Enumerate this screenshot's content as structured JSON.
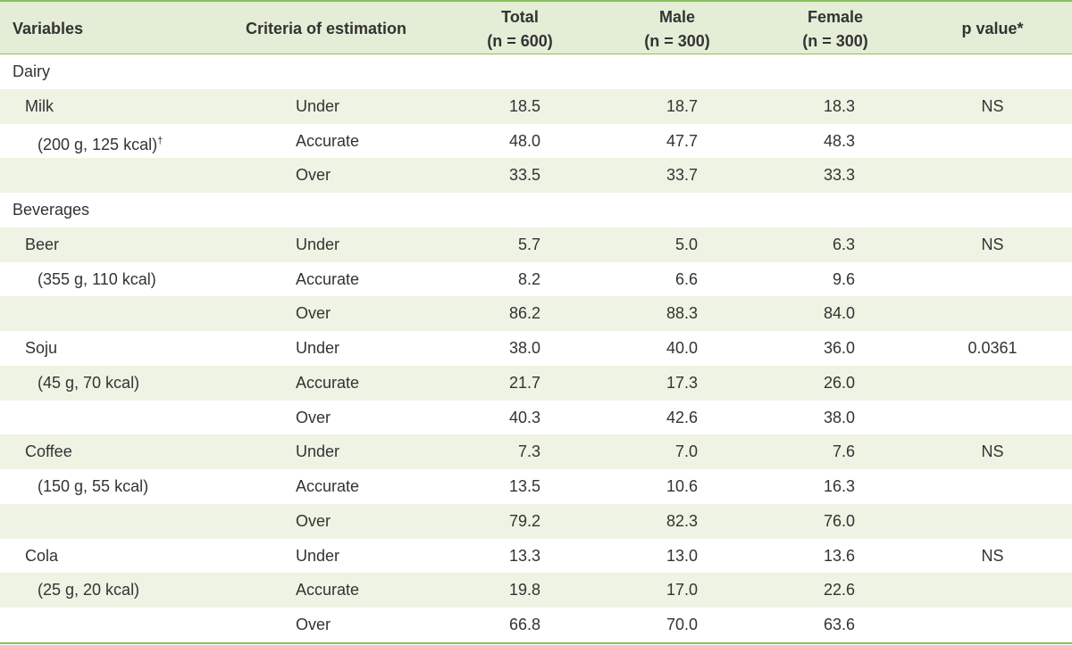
{
  "table": {
    "header": {
      "variables": "Variables",
      "criteria": "Criteria of estimation",
      "total": {
        "label": "Total",
        "n": "(n = 600)"
      },
      "male": {
        "label": "Male",
        "n": "(n = 300)"
      },
      "female": {
        "label": "Female",
        "n": "(n = 300)"
      },
      "p_value": "p value*"
    },
    "rows": [
      {
        "group": "Dairy"
      },
      {
        "item": "Milk",
        "criteria": "Under",
        "values": [
          "18.5",
          "18.7",
          "18.3"
        ],
        "p": "NS"
      },
      {
        "note": "(200 g, 125 kcal)",
        "mark": "†",
        "criteria": "Accurate",
        "values": [
          "48.0",
          "47.7",
          "48.3"
        ]
      },
      {
        "criteria": "Over",
        "values": [
          "33.5",
          "33.7",
          "33.3"
        ]
      },
      {
        "group": "Beverages"
      },
      {
        "item": "Beer",
        "criteria": "Under",
        "values": [
          "5.7",
          "5.0",
          "6.3"
        ],
        "p": "NS"
      },
      {
        "note": "(355 g, 110 kcal)",
        "criteria": "Accurate",
        "values": [
          "8.2",
          "6.6",
          "9.6"
        ]
      },
      {
        "criteria": "Over",
        "values": [
          "86.2",
          "88.3",
          "84.0"
        ]
      },
      {
        "item": "Soju",
        "criteria": "Under",
        "values": [
          "38.0",
          "40.0",
          "36.0"
        ],
        "p": "0.0361"
      },
      {
        "note": "(45 g, 70 kcal)",
        "criteria": "Accurate",
        "values": [
          "21.7",
          "17.3",
          "26.0"
        ]
      },
      {
        "criteria": "Over",
        "values": [
          "40.3",
          "42.6",
          "38.0"
        ]
      },
      {
        "item": "Coffee",
        "criteria": "Under",
        "values": [
          "7.3",
          "7.0",
          "7.6"
        ],
        "p": "NS"
      },
      {
        "note": "(150 g, 55 kcal)",
        "criteria": "Accurate",
        "values": [
          "13.5",
          "10.6",
          "16.3"
        ]
      },
      {
        "criteria": "Over",
        "values": [
          "79.2",
          "82.3",
          "76.0"
        ]
      },
      {
        "item": "Cola",
        "criteria": "Under",
        "values": [
          "13.3",
          "13.0",
          "13.6"
        ],
        "p": "NS"
      },
      {
        "note": "(25 g, 20 kcal)",
        "criteria": "Accurate",
        "values": [
          "19.8",
          "17.0",
          "22.6"
        ]
      },
      {
        "criteria": "Over",
        "values": [
          "66.8",
          "70.0",
          "63.6"
        ]
      }
    ]
  }
}
